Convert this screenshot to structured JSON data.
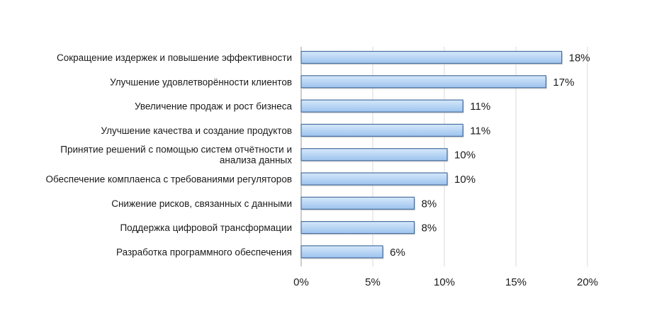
{
  "chart_data": {
    "type": "bar",
    "orientation": "horizontal",
    "categories": [
      "Сокращение издержек и повышение эффективности",
      "Улучшение удовлетворённости клиентов",
      "Увеличение продаж и рост бизнеса",
      "Улучшение качества и создание продуктов",
      "Принятие решений с помощью систем отчётности и анализа данных",
      "Обеспечение комплаенса с требованиями регуляторов",
      "Снижение рисков, связанных с данными",
      "Поддержка цифровой трансформации",
      "Разработка программного обеспечения"
    ],
    "category_lines": [
      [
        "Сокращение издержек и повышение эффективности"
      ],
      [
        "Улучшение удовлетворённости клиентов"
      ],
      [
        "Увеличение продаж и рост бизнеса"
      ],
      [
        "Улучшение качества и создание продуктов"
      ],
      [
        "Принятие решений с помощью систем отчётности и",
        "анализа данных"
      ],
      [
        "Обеспечение комплаенса с требованиями регуляторов"
      ],
      [
        "Снижение рисков, связанных с данными"
      ],
      [
        "Поддержка цифровой трансформации"
      ],
      [
        "Разработка программного обеспечения"
      ]
    ],
    "values": [
      18.2,
      17.1,
      11.3,
      11.3,
      10.2,
      10.2,
      7.9,
      7.9,
      5.7
    ],
    "value_labels": [
      "18%",
      "17%",
      "11%",
      "11%",
      "10%",
      "10%",
      "8%",
      "8%",
      "6%"
    ],
    "xlim": [
      0,
      20
    ],
    "x_ticks": [
      0,
      5,
      10,
      15,
      20
    ],
    "x_tick_labels": [
      "0%",
      "5%",
      "10%",
      "15%",
      "20%"
    ],
    "title": "",
    "xlabel": "",
    "ylabel": "",
    "grid": true,
    "legend": "none",
    "colors": {
      "bar_fill_top": "#d6e8fb",
      "bar_fill_bottom": "#9cc3ee",
      "bar_stroke": "#4a6f9e",
      "grid": "#d9d9d9"
    }
  }
}
